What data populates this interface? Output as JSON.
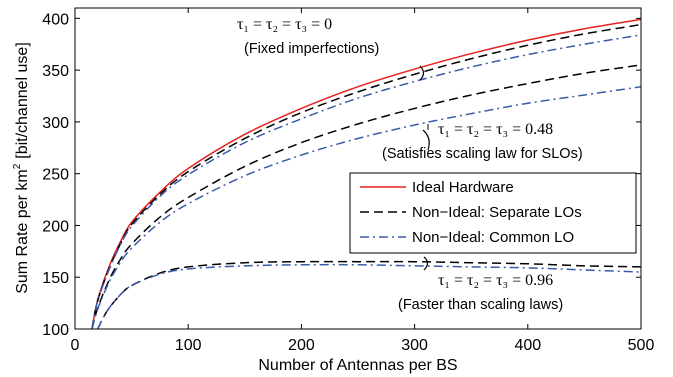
{
  "chart_data": {
    "type": "line",
    "xlabel": "Number of Antennas per BS",
    "ylabel": "Sum Rate per km",
    "ylabel_sup": "2",
    "ylabel_unit": "[bit/channel use]",
    "xlim": [
      0,
      500
    ],
    "ylim": [
      100,
      410
    ],
    "xticks": [
      0,
      100,
      200,
      300,
      400,
      500
    ],
    "yticks": [
      100,
      150,
      200,
      250,
      300,
      350,
      400
    ],
    "grid": false,
    "legend_position": "center-right",
    "colors": {
      "ideal": "#e8211d",
      "separate": "#000000",
      "common": "#3a5ba8"
    },
    "legend": [
      {
        "label": "Ideal Hardware",
        "style": "solid",
        "color": "#e8211d"
      },
      {
        "label": "Non−Ideal: Separate LOs",
        "style": "dashed",
        "color": "#000000"
      },
      {
        "label": "Non−Ideal: Common LO",
        "style": "dashdot",
        "color": "#3a5ba8"
      }
    ],
    "series": [
      {
        "legend": "Ideal Hardware",
        "style": "solid",
        "color": "#e8211d",
        "x": [
          15,
          20,
          30,
          40,
          50,
          75,
          100,
          150,
          200,
          250,
          300,
          350,
          400,
          450,
          500
        ],
        "y": [
          100,
          128,
          160,
          184,
          203,
          232,
          255,
          288,
          313,
          334,
          351,
          366,
          379,
          390,
          399
        ]
      },
      {
        "legend": "Non−Ideal: Separate LOs",
        "group": "Fixed imperfections",
        "style": "dashed",
        "color": "#000000",
        "x": [
          15,
          20,
          30,
          40,
          50,
          75,
          100,
          150,
          200,
          250,
          300,
          350,
          400,
          450,
          500
        ],
        "y": [
          100,
          127,
          158,
          182,
          201,
          230,
          252,
          284,
          309,
          329,
          346,
          361,
          374,
          385,
          394
        ]
      },
      {
        "legend": "Non−Ideal: Common LO",
        "group": "Fixed imperfections",
        "style": "dashdot",
        "color": "#3a5ba8",
        "x": [
          15,
          20,
          30,
          40,
          50,
          75,
          100,
          150,
          200,
          250,
          300,
          350,
          400,
          450,
          500
        ],
        "y": [
          100,
          127,
          157,
          181,
          199,
          228,
          249,
          280,
          303,
          323,
          339,
          353,
          365,
          375,
          384
        ]
      },
      {
        "legend": "Non−Ideal: Separate LOs",
        "group": "Satisfies scaling law for SLOs",
        "style": "dashed",
        "color": "#000000",
        "x": [
          15,
          20,
          30,
          40,
          50,
          75,
          100,
          150,
          200,
          250,
          300,
          350,
          400,
          450,
          500
        ],
        "y": [
          100,
          120,
          147,
          167,
          182,
          208,
          227,
          257,
          280,
          298,
          313,
          326,
          337,
          347,
          355
        ]
      },
      {
        "legend": "Non−Ideal: Common LO",
        "group": "Satisfies scaling law for SLOs",
        "style": "dashdot",
        "color": "#3a5ba8",
        "x": [
          15,
          20,
          30,
          40,
          50,
          75,
          100,
          150,
          200,
          250,
          300,
          350,
          400,
          450,
          500
        ],
        "y": [
          100,
          119,
          145,
          164,
          178,
          203,
          221,
          248,
          268,
          284,
          297,
          308,
          318,
          326,
          334
        ]
      },
      {
        "legend": "Non−Ideal: Separate LOs",
        "group": "Faster than scaling laws",
        "style": "dashed",
        "color": "#000000",
        "x": [
          20,
          25,
          30,
          40,
          50,
          75,
          100,
          150,
          200,
          250,
          300,
          350,
          400,
          450,
          500
        ],
        "y": [
          100,
          111,
          120,
          133,
          142,
          154,
          160,
          164,
          165,
          165,
          165,
          164,
          163,
          161,
          160
        ]
      },
      {
        "legend": "Non−Ideal: Common LO",
        "group": "Faster than scaling laws",
        "style": "dashdot",
        "color": "#3a5ba8",
        "x": [
          20,
          25,
          30,
          40,
          50,
          75,
          100,
          150,
          200,
          250,
          300,
          350,
          400,
          450,
          500
        ],
        "y": [
          100,
          111,
          120,
          133,
          142,
          153,
          158,
          161,
          162,
          162,
          161,
          160,
          159,
          157,
          155
        ]
      }
    ],
    "annotations": [
      {
        "math": "τ₁ = τ₂ = τ₃ = 0",
        "text": "(Fixed imperfections)"
      },
      {
        "math": "τ₁ = τ₂ = τ₃ = 0.48",
        "text": "(Satisfies scaling law for SLOs)"
      },
      {
        "math": "τ₁ = τ₂ = τ₃ = 0.96",
        "text": "(Faster than scaling laws)"
      }
    ]
  }
}
